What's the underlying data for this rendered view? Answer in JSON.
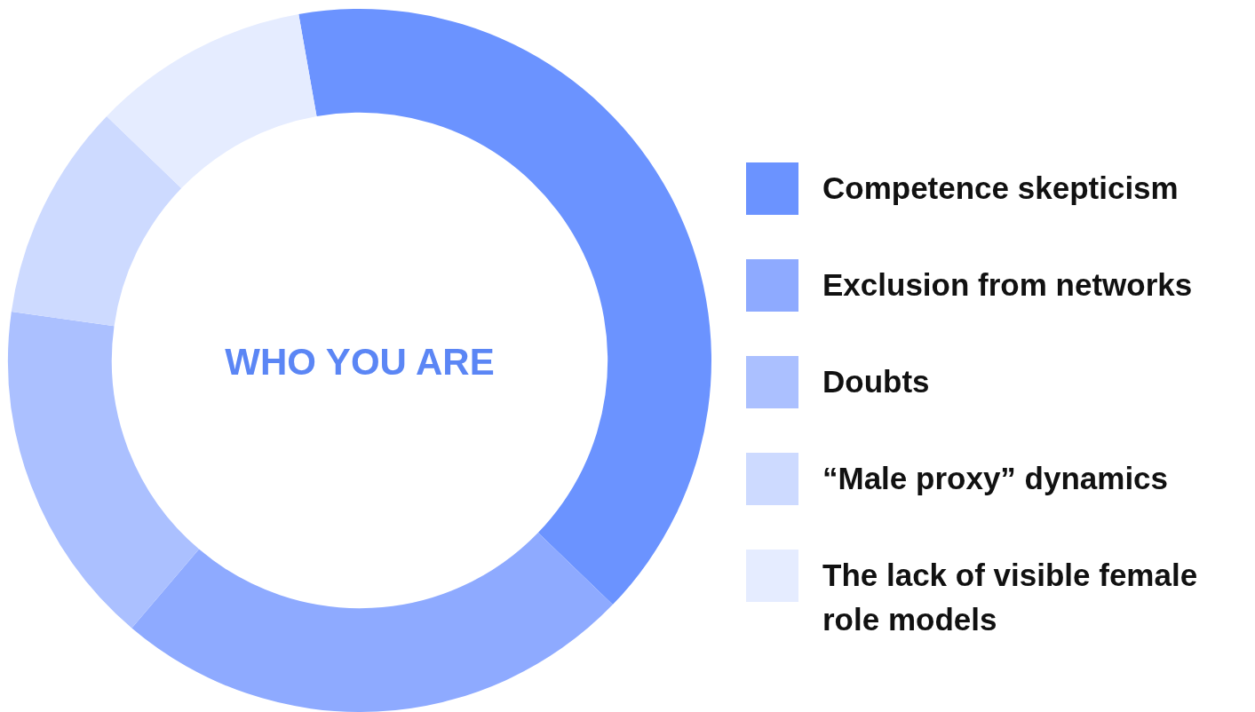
{
  "chart_data": {
    "type": "donut",
    "categories": [
      "Competence skepticism",
      "Exclusion from networks",
      "Doubts",
      "“Male proxy” dynamics",
      "The lack of visible female role models"
    ],
    "values": [
      40,
      24,
      16,
      10,
      10
    ],
    "colors": [
      "#6b93ff",
      "#8eaaff",
      "#abc0ff",
      "#cddaff",
      "#e5ecff"
    ],
    "annotations": [
      "WHO YOU ARE"
    ],
    "legend": "right"
  }
}
